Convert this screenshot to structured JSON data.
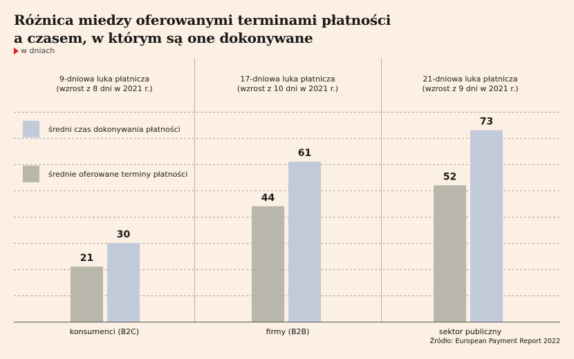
{
  "title_lines": [
    "Różnica miedzy oferowanymi terminami płatności",
    "a czasem, w którym są one dokonywane"
  ],
  "subtitle": "w dniach",
  "source": "Źródło: European Payment Report 2022",
  "colors": {
    "background": "#fcefe3",
    "series_offered": "#b9b7ac",
    "series_actual": "#c0cad9",
    "marker": "#d7261e",
    "gridline": "#a9a29b",
    "divider": "#b8b0a8"
  },
  "legend": [
    {
      "label": "średni czas dokonywania płatności",
      "color": "#c0cad9"
    },
    {
      "label": "średnie oferowane terminy płatności",
      "color": "#b9b7ac"
    }
  ],
  "panels": [
    {
      "note_line1": "9-dniowa luka płatnicza",
      "note_line2": "(wzrost z 8 dni w 2021 r.)"
    },
    {
      "note_line1": "17-dniowa luka płatnicza",
      "note_line2": "(wzrost z 10 dni w 2021 r.)"
    },
    {
      "note_line1": "21-dniowa luka płatnicza",
      "note_line2": "(wzrost z 9 dni w 2021 r.)"
    }
  ],
  "chart_data": {
    "type": "bar",
    "title": "Różnica miedzy oferowanymi terminami płatności a czasem, w którym są one dokonywane",
    "subtitle": "w dniach",
    "categories": [
      "konsumenci (B2C)",
      "firmy (B2B)",
      "sektor publiczny"
    ],
    "series": [
      {
        "name": "średnie oferowane terminy płatności",
        "values": [
          21,
          44,
          52
        ]
      },
      {
        "name": "średni czas dokonywania płatności",
        "values": [
          30,
          61,
          73
        ]
      }
    ],
    "ylim": [
      0,
      80
    ],
    "grid": true,
    "legend_position": "top-left"
  }
}
